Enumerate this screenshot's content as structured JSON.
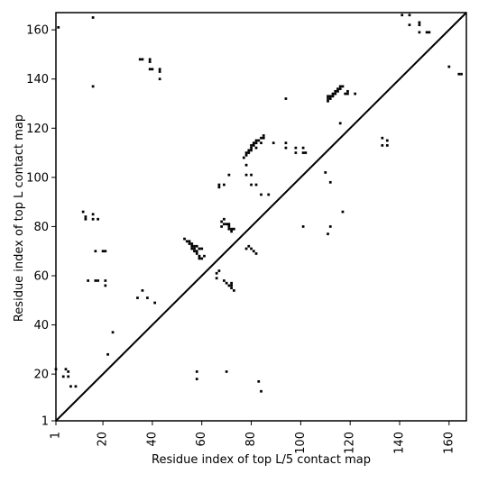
{
  "chart_data": {
    "type": "heatmap",
    "title": "",
    "xlabel": "Residue index of top L/5 contact map",
    "ylabel": "Residue index of top L contact map",
    "xlim": [
      1,
      167
    ],
    "ylim": [
      1,
      167
    ],
    "x_ticks": [
      1,
      20,
      40,
      60,
      80,
      100,
      120,
      140,
      160
    ],
    "y_ticks": [
      1,
      20,
      40,
      60,
      80,
      100,
      120,
      140,
      160
    ],
    "diagonal": true,
    "grid": false,
    "legend": "none",
    "cell_color": "#000000",
    "lower_triangle_contacts_top_L5": [
      [
        14,
        58
      ],
      [
        17,
        58
      ],
      [
        18,
        58
      ],
      [
        17,
        70
      ],
      [
        20,
        70
      ],
      [
        21,
        70
      ],
      [
        21,
        56
      ],
      [
        21,
        58
      ],
      [
        22,
        28
      ],
      [
        24,
        37
      ],
      [
        13,
        83
      ],
      [
        13,
        84
      ],
      [
        16,
        83
      ],
      [
        16,
        85
      ],
      [
        18,
        83
      ],
      [
        12,
        86
      ],
      [
        34,
        51
      ],
      [
        36,
        54
      ],
      [
        38,
        51
      ],
      [
        41,
        49
      ],
      [
        53,
        75
      ],
      [
        54,
        74
      ],
      [
        55,
        73
      ],
      [
        55,
        74
      ],
      [
        56,
        73
      ],
      [
        56,
        72
      ],
      [
        56,
        71
      ],
      [
        57,
        71
      ],
      [
        57,
        70
      ],
      [
        58,
        70
      ],
      [
        58,
        69
      ],
      [
        59,
        68
      ],
      [
        59,
        67
      ],
      [
        60,
        67
      ],
      [
        61,
        68
      ],
      [
        58,
        72
      ],
      [
        59,
        71
      ],
      [
        60,
        71
      ],
      [
        57,
        72
      ],
      [
        66,
        59
      ],
      [
        66,
        61
      ],
      [
        67,
        62
      ],
      [
        69,
        58
      ],
      [
        70,
        57
      ],
      [
        71,
        56
      ],
      [
        72,
        55
      ],
      [
        72,
        56
      ],
      [
        72,
        57
      ],
      [
        73,
        54
      ],
      [
        67,
        96
      ],
      [
        67,
        97
      ],
      [
        69,
        97
      ],
      [
        68,
        80
      ],
      [
        68,
        82
      ],
      [
        69,
        81
      ],
      [
        69,
        83
      ],
      [
        70,
        81
      ],
      [
        71,
        80
      ],
      [
        71,
        81
      ],
      [
        71,
        79
      ],
      [
        72,
        79
      ],
      [
        72,
        78
      ],
      [
        73,
        79
      ],
      [
        71,
        101
      ],
      [
        78,
        71
      ],
      [
        79,
        72
      ],
      [
        80,
        71
      ],
      [
        81,
        70
      ],
      [
        82,
        69
      ],
      [
        83,
        17
      ],
      [
        84,
        13
      ],
      [
        70,
        21
      ],
      [
        58,
        21
      ],
      [
        58,
        18
      ],
      [
        84,
        93
      ],
      [
        87,
        93
      ],
      [
        82,
        97
      ],
      [
        80,
        97
      ],
      [
        78,
        105
      ],
      [
        78,
        101
      ],
      [
        80,
        101
      ],
      [
        77,
        108
      ],
      [
        78,
        109
      ],
      [
        78,
        110
      ],
      [
        79,
        110
      ],
      [
        79,
        111
      ],
      [
        80,
        111
      ],
      [
        80,
        112
      ],
      [
        80,
        113
      ],
      [
        81,
        113
      ],
      [
        81,
        114
      ],
      [
        82,
        114
      ],
      [
        82,
        115
      ],
      [
        83,
        115
      ],
      [
        84,
        116
      ],
      [
        85,
        116
      ],
      [
        85,
        117
      ],
      [
        82,
        112
      ],
      [
        84,
        114
      ],
      [
        101,
        80
      ],
      [
        110,
        102
      ],
      [
        112,
        98
      ],
      [
        112,
        80
      ],
      [
        111,
        77
      ],
      [
        117,
        86
      ]
    ],
    "upper_triangle_contacts_top_L": [
      [
        2,
        161
      ],
      [
        16,
        165
      ],
      [
        16,
        137
      ],
      [
        35,
        148
      ],
      [
        36,
        148
      ],
      [
        39,
        148
      ],
      [
        39,
        147
      ],
      [
        39,
        144
      ],
      [
        40,
        144
      ],
      [
        43,
        144
      ],
      [
        43,
        143
      ],
      [
        43,
        140
      ],
      [
        94,
        132
      ],
      [
        89,
        114
      ],
      [
        94,
        114
      ],
      [
        94,
        112
      ],
      [
        98,
        112
      ],
      [
        98,
        110
      ],
      [
        101,
        112
      ],
      [
        101,
        110
      ],
      [
        102,
        110
      ],
      [
        111,
        131
      ],
      [
        111,
        132
      ],
      [
        111,
        133
      ],
      [
        112,
        132
      ],
      [
        112,
        133
      ],
      [
        113,
        133
      ],
      [
        113,
        134
      ],
      [
        114,
        134
      ],
      [
        114,
        135
      ],
      [
        115,
        135
      ],
      [
        115,
        136
      ],
      [
        116,
        136
      ],
      [
        116,
        137
      ],
      [
        117,
        137
      ],
      [
        118,
        134
      ],
      [
        119,
        135
      ],
      [
        119,
        134
      ],
      [
        122,
        134
      ],
      [
        116,
        122
      ],
      [
        133,
        113
      ],
      [
        133,
        116
      ],
      [
        135,
        113
      ],
      [
        135,
        115
      ],
      [
        141,
        166
      ],
      [
        144,
        166
      ],
      [
        144,
        162
      ],
      [
        148,
        163
      ],
      [
        148,
        162
      ],
      [
        148,
        159
      ],
      [
        151,
        159
      ],
      [
        152,
        159
      ],
      [
        160,
        145
      ],
      [
        164,
        142
      ],
      [
        165,
        142
      ]
    ],
    "extra_points": [
      [
        1,
        22
      ],
      [
        4,
        19
      ],
      [
        5,
        22
      ],
      [
        6,
        19
      ],
      [
        7,
        15
      ],
      [
        9,
        15
      ],
      [
        6,
        21
      ]
    ]
  }
}
